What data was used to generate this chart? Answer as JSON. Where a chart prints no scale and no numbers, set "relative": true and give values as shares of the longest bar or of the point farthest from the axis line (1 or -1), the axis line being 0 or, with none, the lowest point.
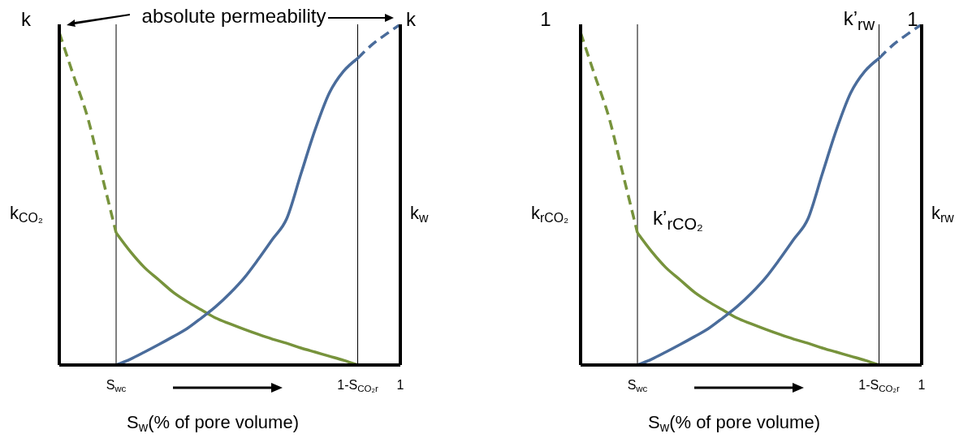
{
  "chart_data": [
    {
      "type": "line",
      "relative": true,
      "xlabel": "S$_{w}$(% of pore volume)",
      "ylabel": "k$_{CO₂}$",
      "y2label": "k$_{w}$",
      "marker": "none",
      "categories": [
        null,
        null,
        null,
        null,
        "S$_{wc}$",
        null,
        null,
        null,
        null,
        null,
        null,
        null,
        null,
        null,
        null,
        null,
        null,
        null,
        null,
        null,
        null,
        "1-S$_{CO₂r}$",
        null,
        null,
        "1"
      ],
      "series": [
        {
          "color": "#77933c",
          "line_style": "dashed",
          "values": [
            0.976,
            0.85,
            0.726,
            0.557,
            0.388,
            null,
            null,
            null,
            null,
            null,
            null,
            null,
            null,
            null,
            null,
            null,
            null,
            null,
            null,
            null,
            null,
            null,
            null,
            null,
            null
          ]
        },
        {
          "color": "#77933c",
          "line_style": "solid",
          "values": [
            null,
            null,
            null,
            null,
            0.388,
            0.333,
            0.286,
            0.25,
            0.214,
            0.186,
            0.162,
            0.138,
            0.121,
            0.105,
            0.09,
            0.076,
            0.064,
            0.05,
            0.038,
            0.026,
            0.014,
            0,
            null,
            null,
            null
          ]
        },
        {
          "color": "#4a6c9b",
          "line_style": "solid",
          "values": [
            null,
            null,
            null,
            null,
            0,
            0.017,
            0.038,
            0.06,
            0.083,
            0.107,
            0.138,
            0.171,
            0.21,
            0.255,
            0.31,
            0.369,
            0.429,
            0.56,
            0.69,
            0.798,
            0.862,
            0.9,
            null,
            null,
            null
          ]
        },
        {
          "color": "#4a6c9b",
          "line_style": "dashed",
          "values": [
            null,
            null,
            null,
            null,
            null,
            null,
            null,
            null,
            null,
            null,
            null,
            null,
            null,
            null,
            null,
            null,
            null,
            null,
            null,
            null,
            null,
            0.9,
            0.94,
            0.971,
            1
          ]
        }
      ],
      "ref_lines": [
        {
          "axis": "x",
          "value": "S$_{wc}$",
          "color": "#000000"
        },
        {
          "axis": "x",
          "value": "1-S$_{CO₂r}$",
          "color": "#000000"
        }
      ],
      "annotations": [
        "k",
        "k",
        "absolute permeability"
      ]
    },
    {
      "type": "line",
      "relative": true,
      "xlabel": "S$_{w}$(% of pore volume)",
      "ylabel": "k$_{rCO₂}$",
      "y2label": "k$_{rw}$",
      "marker": "none",
      "categories": [
        null,
        null,
        null,
        null,
        "S$_{wc}$",
        null,
        null,
        null,
        null,
        null,
        null,
        null,
        null,
        null,
        null,
        null,
        null,
        null,
        null,
        null,
        null,
        "1-S$_{CO₂r}$",
        null,
        null,
        "1"
      ],
      "series": [
        {
          "color": "#77933c",
          "line_style": "dashed",
          "values": [
            0.976,
            0.85,
            0.726,
            0.557,
            0.388,
            null,
            null,
            null,
            null,
            null,
            null,
            null,
            null,
            null,
            null,
            null,
            null,
            null,
            null,
            null,
            null,
            null,
            null,
            null,
            null
          ]
        },
        {
          "color": "#77933c",
          "line_style": "solid",
          "values": [
            null,
            null,
            null,
            null,
            0.388,
            0.333,
            0.286,
            0.25,
            0.214,
            0.186,
            0.162,
            0.138,
            0.121,
            0.105,
            0.09,
            0.076,
            0.064,
            0.05,
            0.038,
            0.026,
            0.014,
            0,
            null,
            null,
            null
          ]
        },
        {
          "color": "#4a6c9b",
          "line_style": "solid",
          "values": [
            null,
            null,
            null,
            null,
            0,
            0.017,
            0.038,
            0.06,
            0.083,
            0.107,
            0.138,
            0.171,
            0.21,
            0.255,
            0.31,
            0.369,
            0.429,
            0.56,
            0.69,
            0.798,
            0.862,
            0.9,
            null,
            null,
            null
          ]
        },
        {
          "color": "#4a6c9b",
          "line_style": "dashed",
          "values": [
            null,
            null,
            null,
            null,
            null,
            null,
            null,
            null,
            null,
            null,
            null,
            null,
            null,
            null,
            null,
            null,
            null,
            null,
            null,
            null,
            null,
            0.9,
            0.94,
            0.971,
            1
          ]
        }
      ],
      "ref_lines": [
        {
          "axis": "x",
          "value": "S$_{wc}$",
          "color": "#000000"
        },
        {
          "axis": "x",
          "value": "1-S$_{CO₂r}$",
          "color": "#000000"
        }
      ],
      "annotations": [
        "1",
        "1",
        "k’$_{rCO₂}$",
        "k’$_{rw}$"
      ]
    }
  ]
}
